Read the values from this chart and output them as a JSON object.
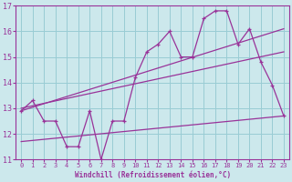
{
  "background_color": "#cce8ec",
  "grid_color": "#99ccd4",
  "line_color": "#993399",
  "xlabel": "Windchill (Refroidissement éolien,°C)",
  "xlim": [
    -0.5,
    23.5
  ],
  "ylim": [
    11,
    17
  ],
  "xticks": [
    0,
    1,
    2,
    3,
    4,
    5,
    6,
    7,
    8,
    9,
    10,
    11,
    12,
    13,
    14,
    15,
    16,
    17,
    18,
    19,
    20,
    21,
    22,
    23
  ],
  "yticks": [
    11,
    12,
    13,
    14,
    15,
    16,
    17
  ],
  "series_main": {
    "x": [
      0,
      1,
      2,
      3,
      4,
      5,
      6,
      7,
      8,
      9,
      10,
      11,
      12,
      13,
      14,
      15,
      16,
      17,
      18,
      19,
      20,
      21,
      22,
      23
    ],
    "y": [
      12.9,
      13.3,
      12.5,
      12.5,
      11.5,
      11.5,
      12.9,
      11.0,
      12.5,
      12.5,
      14.2,
      15.2,
      15.5,
      16.0,
      15.0,
      15.0,
      16.5,
      16.8,
      16.8,
      15.5,
      16.1,
      14.8,
      13.9,
      12.7
    ]
  },
  "line1": {
    "x": [
      0,
      23
    ],
    "y": [
      12.9,
      16.1
    ]
  },
  "line2": {
    "x": [
      0,
      23
    ],
    "y": [
      13.0,
      15.2
    ]
  },
  "line3": {
    "x": [
      0,
      23
    ],
    "y": [
      11.7,
      12.7
    ]
  }
}
